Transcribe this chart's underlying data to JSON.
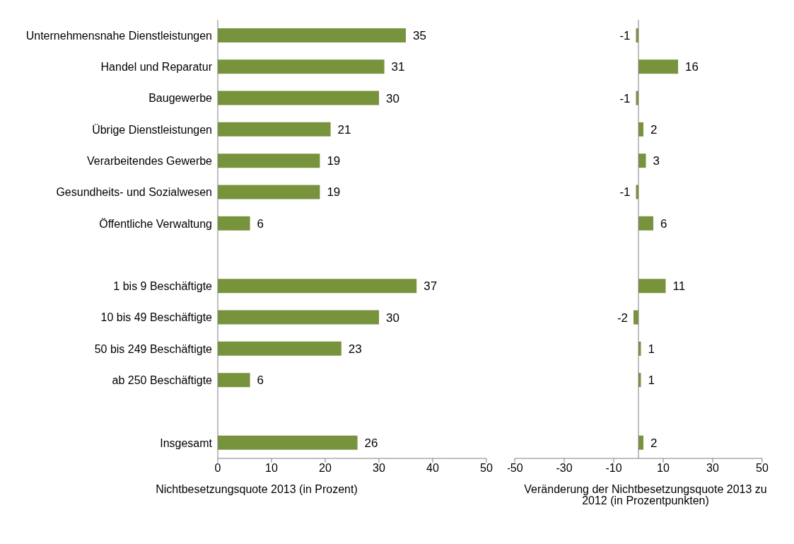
{
  "chart_data": [
    {
      "type": "bar",
      "orientation": "horizontal",
      "xlabel": "Nichtbesetzungsquote 2013 (in Prozent)",
      "categories": [
        "Unternehmensnahe Dienstleistungen",
        "Handel und Reparatur",
        "Baugewerbe",
        "Übrige Dienstleistungen",
        "Verarbeitendes Gewerbe",
        "Gesundheits- und Sozialwesen",
        "Öffentliche Verwaltung",
        null,
        "1 bis   9 Beschäftigte",
        "10 bis  49 Beschäftigte",
        "50 bis 249 Beschäftigte",
        "ab 250 Beschäftigte",
        null,
        "Insgesamt"
      ],
      "values": [
        35,
        31,
        30,
        21,
        19,
        19,
        6,
        null,
        37,
        30,
        23,
        6,
        null,
        26
      ],
      "color": "#77933c",
      "xlim": [
        0,
        50
      ],
      "xticks": [
        0,
        10,
        20,
        30,
        40,
        50
      ],
      "data_labels": true,
      "grid": false,
      "legend": false
    },
    {
      "type": "bar",
      "orientation": "horizontal",
      "xlabel": "Veränderung der Nichtbesetzungsquote 2013 zu 2012 (in Prozentpunkten)",
      "categories": [
        null,
        null,
        null,
        null,
        null,
        null,
        null,
        null,
        null,
        null,
        null,
        null,
        null,
        null
      ],
      "values": [
        -1,
        16,
        -1,
        2,
        3,
        -1,
        6,
        null,
        11,
        -2,
        1,
        1,
        null,
        2
      ],
      "color": "#77933c",
      "xlim": [
        -50,
        50
      ],
      "xticks": [
        -50,
        -30,
        -10,
        10,
        30,
        50
      ],
      "data_labels": true,
      "grid": false,
      "legend": false,
      "tick_labels": "x"
    }
  ]
}
